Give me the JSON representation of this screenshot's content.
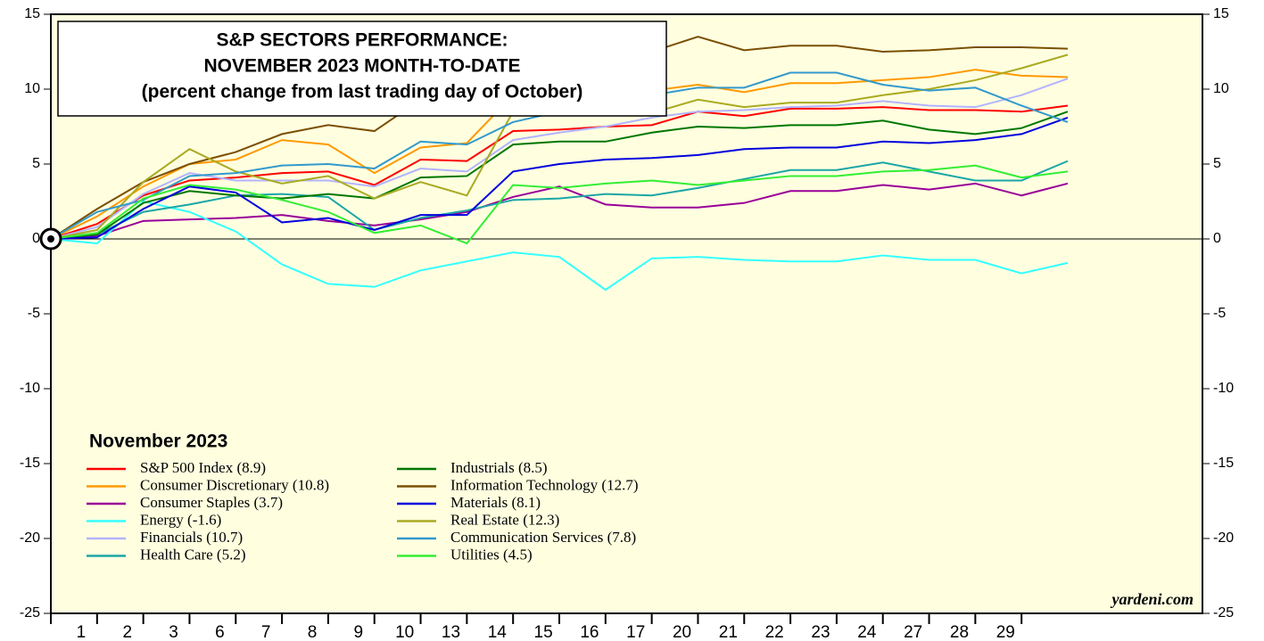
{
  "chart_data": {
    "type": "line",
    "title": [
      "S&P SECTORS PERFORMANCE:",
      "NOVEMBER 2023 MONTH-TO-DATE",
      "(percent change from last trading day of October)"
    ],
    "legend_title": "November 2023",
    "source": "yardeni.com",
    "categories": [
      null,
      "1",
      "2",
      "3",
      "6",
      "7",
      "8",
      "9",
      "10",
      "13",
      "14",
      "15",
      "16",
      "17",
      "20",
      "21",
      "22",
      "23",
      "24",
      "27",
      "28",
      "29",
      null
    ],
    "ylim": [
      -25,
      15
    ],
    "yticks": [
      -25,
      -20,
      -15,
      -10,
      -5,
      0,
      5,
      10,
      15
    ],
    "series": [
      {
        "name": "S&P 500 Index (8.9)",
        "color": "#ff0000",
        "values": [
          0,
          1.0,
          2.9,
          3.9,
          4.1,
          4.4,
          4.5,
          3.6,
          5.3,
          5.2,
          7.2,
          7.3,
          7.5,
          7.6,
          8.5,
          8.2,
          8.7,
          8.7,
          8.8,
          8.6,
          8.6,
          8.5,
          8.9
        ]
      },
      {
        "name": "Consumer Discretionary (10.8)",
        "color": "#ff9900",
        "values": [
          0,
          1.5,
          3.5,
          5.0,
          5.3,
          6.6,
          6.3,
          4.4,
          6.1,
          6.4,
          9.6,
          9.8,
          10.0,
          9.9,
          10.3,
          9.8,
          10.4,
          10.4,
          10.6,
          10.8,
          11.3,
          10.9,
          10.8
        ]
      },
      {
        "name": "Consumer Staples (3.7)",
        "color": "#990099",
        "values": [
          0,
          0.2,
          1.2,
          1.3,
          1.4,
          1.6,
          1.2,
          0.9,
          1.3,
          1.8,
          2.8,
          3.5,
          2.3,
          2.1,
          2.1,
          2.4,
          3.2,
          3.2,
          3.6,
          3.3,
          3.7,
          2.9,
          3.7
        ]
      },
      {
        "name": "Energy (-1.6)",
        "color": "#33ffff",
        "values": [
          0,
          -0.3,
          2.5,
          1.8,
          0.5,
          -1.7,
          -3.0,
          -3.2,
          -2.1,
          -1.5,
          -0.9,
          -1.2,
          -3.4,
          -1.3,
          -1.2,
          -1.4,
          -1.5,
          -1.5,
          -1.1,
          -1.4,
          -1.4,
          -2.3,
          -1.6
        ]
      },
      {
        "name": "Financials (10.7)",
        "color": "#b3b3ff",
        "values": [
          0,
          0.8,
          3.0,
          4.4,
          3.9,
          3.9,
          3.9,
          3.5,
          4.7,
          4.5,
          6.6,
          7.1,
          7.5,
          8.1,
          8.5,
          8.6,
          8.8,
          8.9,
          9.2,
          8.9,
          8.8,
          9.6,
          10.7
        ]
      },
      {
        "name": "Health Care (5.2)",
        "color": "#1aa6a6",
        "values": [
          0,
          0.3,
          1.8,
          2.3,
          2.9,
          3.0,
          2.8,
          0.6,
          1.4,
          1.9,
          2.6,
          2.7,
          3.0,
          2.9,
          3.4,
          4.0,
          4.6,
          4.6,
          5.1,
          4.5,
          3.9,
          3.9,
          5.2
        ]
      },
      {
        "name": "Industrials (8.5)",
        "color": "#007700",
        "values": [
          0,
          0.3,
          2.4,
          3.2,
          2.9,
          2.7,
          3.0,
          2.7,
          4.1,
          4.2,
          6.3,
          6.5,
          6.5,
          7.1,
          7.5,
          7.4,
          7.6,
          7.6,
          7.9,
          7.3,
          7.0,
          7.4,
          8.5
        ]
      },
      {
        "name": "Information Technology (12.7)",
        "color": "#7a4f00",
        "values": [
          0,
          2.0,
          3.8,
          5.0,
          5.8,
          7.0,
          7.6,
          7.2,
          9.3,
          10.3,
          11.4,
          11.8,
          12.0,
          12.5,
          13.5,
          12.6,
          12.9,
          12.9,
          12.5,
          12.6,
          12.8,
          12.8,
          12.7
        ]
      },
      {
        "name": "Materials (8.1)",
        "color": "#0000dd",
        "values": [
          0,
          0.1,
          2.0,
          3.5,
          3.1,
          1.1,
          1.4,
          0.6,
          1.6,
          1.6,
          4.5,
          5.0,
          5.3,
          5.4,
          5.6,
          6.0,
          6.1,
          6.1,
          6.5,
          6.4,
          6.6,
          7.0,
          8.1
        ]
      },
      {
        "name": "Real Estate (12.3)",
        "color": "#aaaa22",
        "values": [
          0,
          0.6,
          3.8,
          6.0,
          4.5,
          3.7,
          4.2,
          2.7,
          3.8,
          2.9,
          8.5,
          8.6,
          8.7,
          8.4,
          9.3,
          8.8,
          9.1,
          9.1,
          9.6,
          10.0,
          10.6,
          11.4,
          12.3
        ]
      },
      {
        "name": "Communication Services (7.8)",
        "color": "#3399cc",
        "values": [
          0,
          1.8,
          2.6,
          4.2,
          4.4,
          4.9,
          5.0,
          4.7,
          6.5,
          6.3,
          7.8,
          8.5,
          9.0,
          9.6,
          10.1,
          10.1,
          11.1,
          11.1,
          10.3,
          9.9,
          10.1,
          8.9,
          7.8
        ]
      },
      {
        "name": "Utilities (4.5)",
        "color": "#33ee33",
        "values": [
          0,
          0.4,
          2.7,
          3.6,
          3.3,
          2.6,
          1.8,
          0.4,
          0.9,
          -0.3,
          3.6,
          3.4,
          3.7,
          3.9,
          3.6,
          3.9,
          4.2,
          4.2,
          4.5,
          4.6,
          4.9,
          4.1,
          4.5
        ]
      }
    ]
  }
}
